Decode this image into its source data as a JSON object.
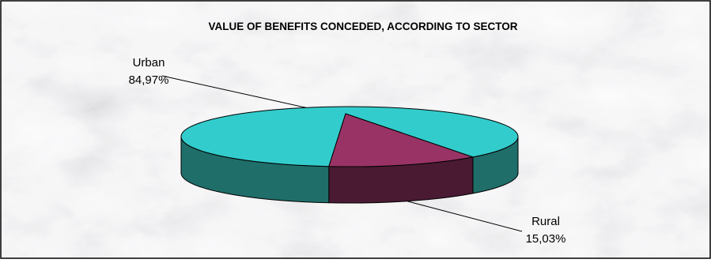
{
  "chart_data": {
    "type": "pie",
    "style": "3d",
    "title": "VALUE OF BENEFITS CONCEDED, ACCORDING TO SECTOR",
    "categories": [
      "Urban",
      "Rural"
    ],
    "values": [
      84.97,
      15.03
    ],
    "value_labels": [
      "84,97%",
      "15,03%"
    ],
    "colors": [
      "#33cccc",
      "#993366"
    ],
    "side_colors": [
      "#1f6e6a",
      "#4a1a33"
    ],
    "background": "gray marble texture",
    "legend": "none"
  }
}
